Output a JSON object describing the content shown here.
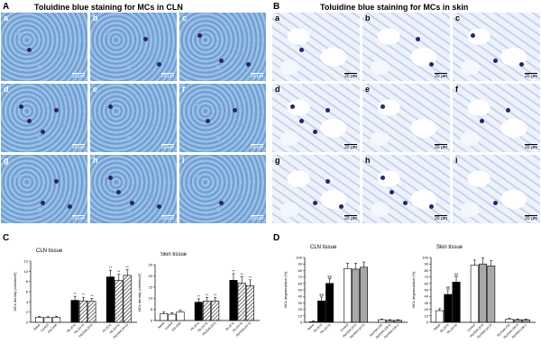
{
  "panelA": {
    "letter": "A",
    "title": "Toluidine blue staining for MCs in CLN",
    "tiles": [
      {
        "label": "a",
        "scale": "20 μm"
      },
      {
        "label": "b",
        "scale": "20 μm"
      },
      {
        "label": "c",
        "scale": "20 μm"
      },
      {
        "label": "d",
        "scale": "20 μm"
      },
      {
        "label": "e",
        "scale": "20 μm"
      },
      {
        "label": "f",
        "scale": "20 μm"
      },
      {
        "label": "g",
        "scale": "20 μm"
      },
      {
        "label": "h",
        "scale": "20 μm"
      },
      {
        "label": "i",
        "scale": "20 μm"
      }
    ]
  },
  "panelB": {
    "letter": "B",
    "title": "Toluidine blue staining for MCs in skin",
    "tiles": [
      {
        "label": "a",
        "scale": "20 μm"
      },
      {
        "label": "b",
        "scale": "20 μm"
      },
      {
        "label": "c",
        "scale": "20 μm"
      },
      {
        "label": "d",
        "scale": "20 μm"
      },
      {
        "label": "e",
        "scale": "20 μm"
      },
      {
        "label": "f",
        "scale": "20 μm"
      },
      {
        "label": "g",
        "scale": "20 μm"
      },
      {
        "label": "h",
        "scale": "20 μm"
      },
      {
        "label": "i",
        "scale": "20 μm"
      }
    ]
  },
  "panelC": {
    "letter": "C"
  },
  "panelD": {
    "letter": "D"
  },
  "chart_data": [
    {
      "type": "bar",
      "title": "CLN tissue",
      "ylabel": "MCs density (cells/mm²)",
      "ylim": [
        0,
        12
      ],
      "yticks": [
        "0",
        "2",
        "4",
        "6",
        "8",
        "10",
        "12"
      ],
      "categories": [
        "Naive",
        "Control",
        "Ctrl-OVA",
        "Pb (8 h)",
        "Pb (24 h)",
        "Pb/OVA (8 h)",
        "Pb (8 h)",
        "Pb (24 h)",
        "Pb/OVA (24 h)"
      ],
      "values": [
        1.0,
        0.9,
        1.0,
        4.3,
        4.2,
        4.1,
        8.9,
        8.2,
        9.2
      ],
      "errors": [
        0.2,
        0.2,
        0.2,
        0.8,
        0.7,
        0.6,
        1.3,
        1.2,
        1.1
      ],
      "annotations": [
        "",
        "",
        "",
        "**",
        "**",
        "**",
        "**",
        "**",
        "**"
      ],
      "fills": [
        "white",
        "white",
        "white",
        "black",
        "hatched",
        "hatched",
        "black",
        "hatched",
        "hatched"
      ]
    },
    {
      "type": "bar",
      "title": "Skin tissue",
      "ylabel": "MCs density (cells/mm²)",
      "ylim": [
        0,
        25
      ],
      "yticks": [
        "0",
        "5",
        "10",
        "15",
        "20",
        "25"
      ],
      "categories": [
        "Naive",
        "Control",
        "Ctrl-OVA",
        "Pb (8 h)",
        "Pb (24 h)",
        "Pb/OVA (8 h)",
        "Pb (8 h)",
        "Pb (24 h)",
        "Pb/OVA (24 h)"
      ],
      "values": [
        3.0,
        2.8,
        3.8,
        8.2,
        8.6,
        8.7,
        18.0,
        16.8,
        15.6
      ],
      "errors": [
        0.8,
        0.7,
        0.8,
        1.5,
        1.6,
        1.5,
        3.0,
        2.8,
        2.6
      ],
      "annotations": [
        "",
        "",
        "",
        "**",
        "**",
        "**",
        "**",
        "**",
        "**"
      ],
      "fills": [
        "white",
        "white",
        "white",
        "black",
        "hatched",
        "hatched",
        "black",
        "hatched",
        "hatched"
      ]
    },
    {
      "type": "bar",
      "title": "CLN tissue",
      "ylabel": "MCs degranulation (%)",
      "ylim": [
        0,
        100
      ],
      "yticks": [
        "0",
        "10",
        "20",
        "30",
        "40",
        "50",
        "60",
        "70",
        "80",
        "90",
        "100"
      ],
      "categories": [
        "Naive",
        "Pb (8 h)",
        "Pb (24 h)",
        "Control",
        "Pb/OVA (8 h)",
        "Pb/OVA (24 h)",
        "Pb/OVA-24h",
        "Pb/OVA-24h-b",
        "Pb/OVA-24h-c"
      ],
      "values": [
        1,
        33,
        60,
        83,
        82,
        85,
        4,
        3,
        3
      ],
      "errors": [
        1,
        6,
        7,
        8,
        9,
        8,
        1,
        1,
        1
      ],
      "annotations": [
        "",
        "§§",
        "§§",
        "",
        "",
        "",
        "",
        "",
        ""
      ],
      "fills": [
        "white",
        "black",
        "black",
        "white",
        "gray",
        "gray",
        "white",
        "gray",
        "gray"
      ]
    },
    {
      "type": "bar",
      "title": "Skin tissue",
      "ylabel": "MCs degranulation (%)",
      "ylim": [
        0,
        100
      ],
      "yticks": [
        "0",
        "10",
        "20",
        "30",
        "40",
        "50",
        "60",
        "70",
        "80",
        "90",
        "100"
      ],
      "categories": [
        "Naive",
        "Pb (8 h)",
        "Pb (24 h)",
        "Control",
        "Pb/OVA (8 h)",
        "Pb/OVA (24 h)",
        "Pb/OVA-24h",
        "Pb/OVA-24h-b",
        "Pb/OVA-24h-c"
      ],
      "values": [
        18,
        43,
        62,
        88,
        90,
        87,
        5,
        4,
        4
      ],
      "errors": [
        3,
        7,
        8,
        8,
        9,
        8,
        1,
        1,
        1
      ],
      "annotations": [
        "",
        "§§",
        "§§",
        "",
        "",
        "",
        "",
        "",
        ""
      ],
      "fills": [
        "white",
        "black",
        "black",
        "white",
        "gray",
        "gray",
        "white",
        "gray",
        "gray"
      ]
    }
  ]
}
